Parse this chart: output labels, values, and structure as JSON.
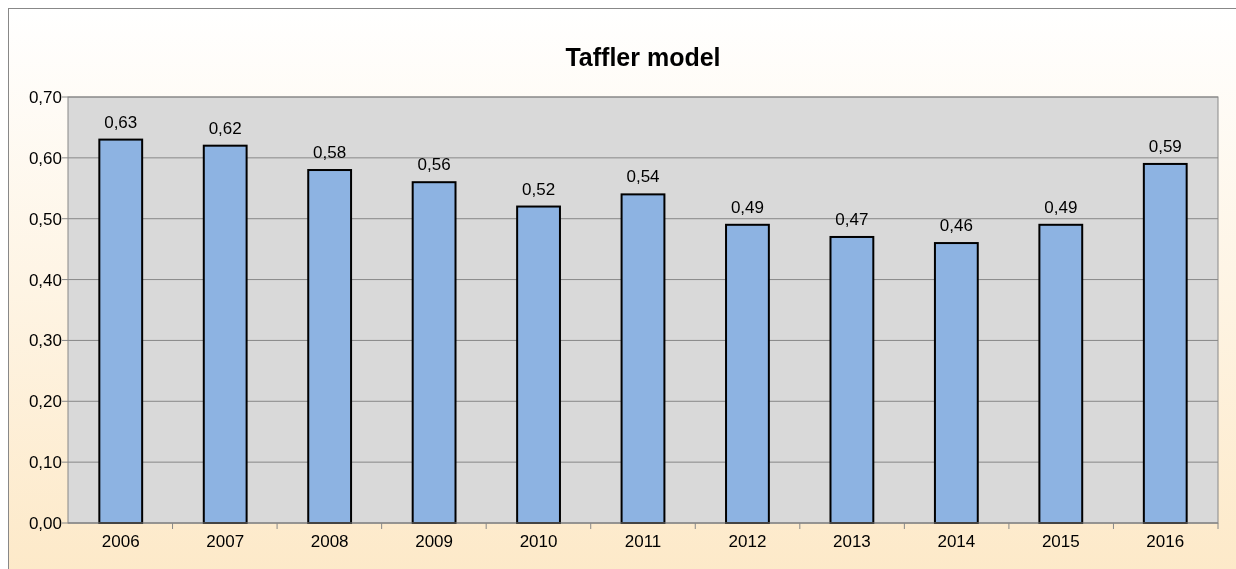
{
  "chart_data": {
    "type": "bar",
    "title": "Taffler model",
    "categories": [
      "2006",
      "2007",
      "2008",
      "2009",
      "2010",
      "2011",
      "2012",
      "2013",
      "2014",
      "2015",
      "2016"
    ],
    "values": [
      0.63,
      0.62,
      0.58,
      0.56,
      0.52,
      0.54,
      0.49,
      0.47,
      0.46,
      0.49,
      0.59
    ],
    "value_labels": [
      "0,63",
      "0,62",
      "0,58",
      "0,56",
      "0,52",
      "0,54",
      "0,49",
      "0,47",
      "0,46",
      "0,49",
      "0,59"
    ],
    "color": "#8db3e2",
    "ylim": [
      0,
      0.7
    ],
    "yticks": [
      {
        "value": 0,
        "label": "0,00"
      },
      {
        "value": 0.1,
        "label": "0,10"
      },
      {
        "value": 0.2,
        "label": "0,20"
      },
      {
        "value": 0.3,
        "label": "0,30"
      },
      {
        "value": 0.4,
        "label": "0,40"
      },
      {
        "value": 0.5,
        "label": "0,50"
      },
      {
        "value": 0.6,
        "label": "0,60"
      },
      {
        "value": 0.7,
        "label": "0,70"
      }
    ],
    "grid": "y"
  }
}
